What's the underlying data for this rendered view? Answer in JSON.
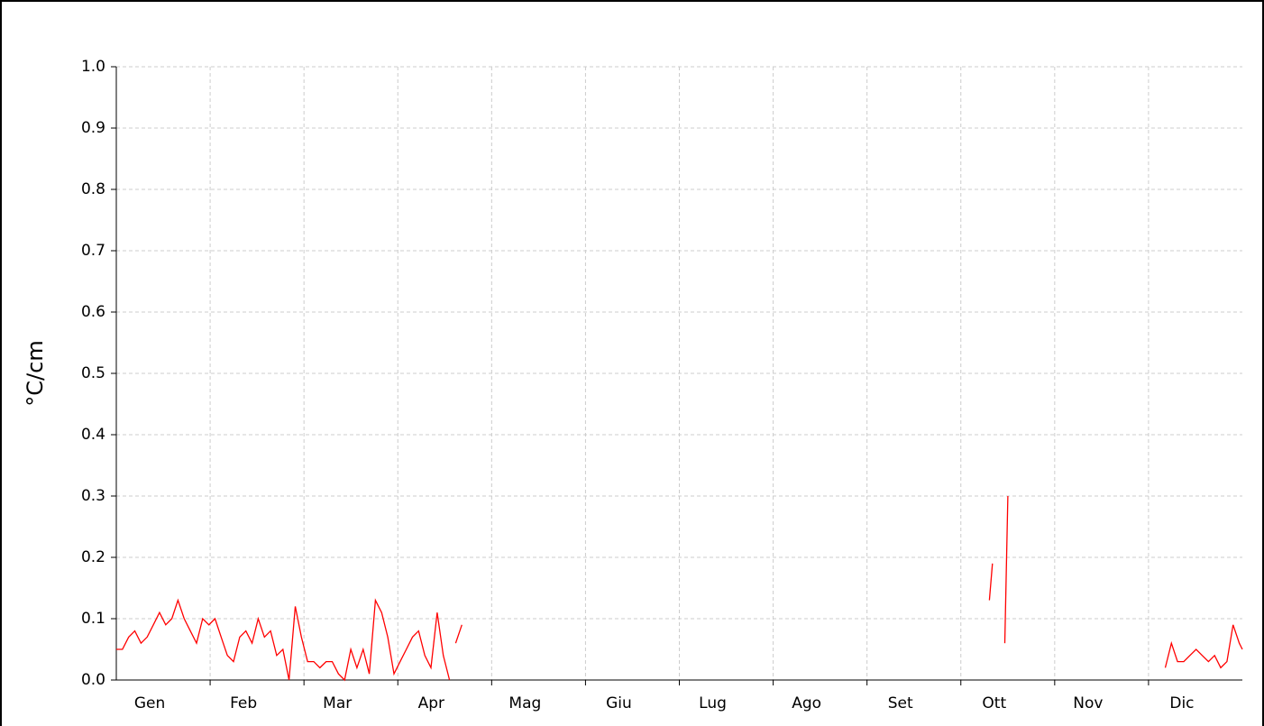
{
  "chart_data": {
    "type": "line",
    "ylabel": "°C/cm",
    "categories": [
      "Gen",
      "Feb",
      "Mar",
      "Apr",
      "Mag",
      "Giu",
      "Lug",
      "Ago",
      "Set",
      "Ott",
      "Nov",
      "Dic"
    ],
    "xlim": [
      0,
      365
    ],
    "ylim": [
      0,
      1
    ],
    "yticks": [
      {
        "value": 0,
        "label": "0.0"
      },
      0.1,
      0.2,
      0.3,
      0.4,
      0.5,
      0.6,
      0.7,
      0.8,
      0.9,
      {
        "value": 1,
        "label": "1.0"
      }
    ],
    "grid": true,
    "series": [
      {
        "name": "°C/cm",
        "color": "#ff0000",
        "x": [
          0,
          2,
          4,
          6,
          8,
          10,
          12,
          14,
          16,
          18,
          20,
          22,
          24,
          26,
          28,
          30,
          32,
          34,
          36,
          38,
          40,
          42,
          44,
          46,
          48,
          50,
          52,
          54,
          56,
          58,
          60,
          62,
          64,
          66,
          68,
          70,
          72,
          74,
          76,
          78,
          80,
          82,
          84,
          86,
          88,
          90,
          92,
          94,
          96,
          98,
          100,
          102,
          104,
          106,
          108,
          109,
          110,
          112,
          113,
          283,
          284,
          285,
          288,
          289,
          290,
          340,
          342,
          344,
          346,
          348,
          350,
          352,
          354,
          356,
          358,
          360,
          362,
          364,
          365
        ],
        "values": [
          0.05,
          0.05,
          0.07,
          0.08,
          0.06,
          0.07,
          0.09,
          0.11,
          0.09,
          0.1,
          0.13,
          0.1,
          0.08,
          0.06,
          0.1,
          0.09,
          0.1,
          0.07,
          0.04,
          0.03,
          0.07,
          0.08,
          0.06,
          0.1,
          0.07,
          0.08,
          0.04,
          0.05,
          0.0,
          0.12,
          0.07,
          0.03,
          0.03,
          0.02,
          0.03,
          0.03,
          0.01,
          0.0,
          0.05,
          0.02,
          0.05,
          0.01,
          0.13,
          0.11,
          0.07,
          0.01,
          0.03,
          0.05,
          0.07,
          0.08,
          0.04,
          0.02,
          0.11,
          0.04,
          0.0,
          null,
          0.06,
          0.09,
          null,
          0.13,
          0.19,
          null,
          0.06,
          0.3,
          null,
          0.02,
          0.06,
          0.03,
          0.03,
          0.04,
          0.05,
          0.04,
          0.03,
          0.04,
          0.02,
          0.03,
          0.09,
          0.06,
          0.05
        ]
      }
    ]
  }
}
